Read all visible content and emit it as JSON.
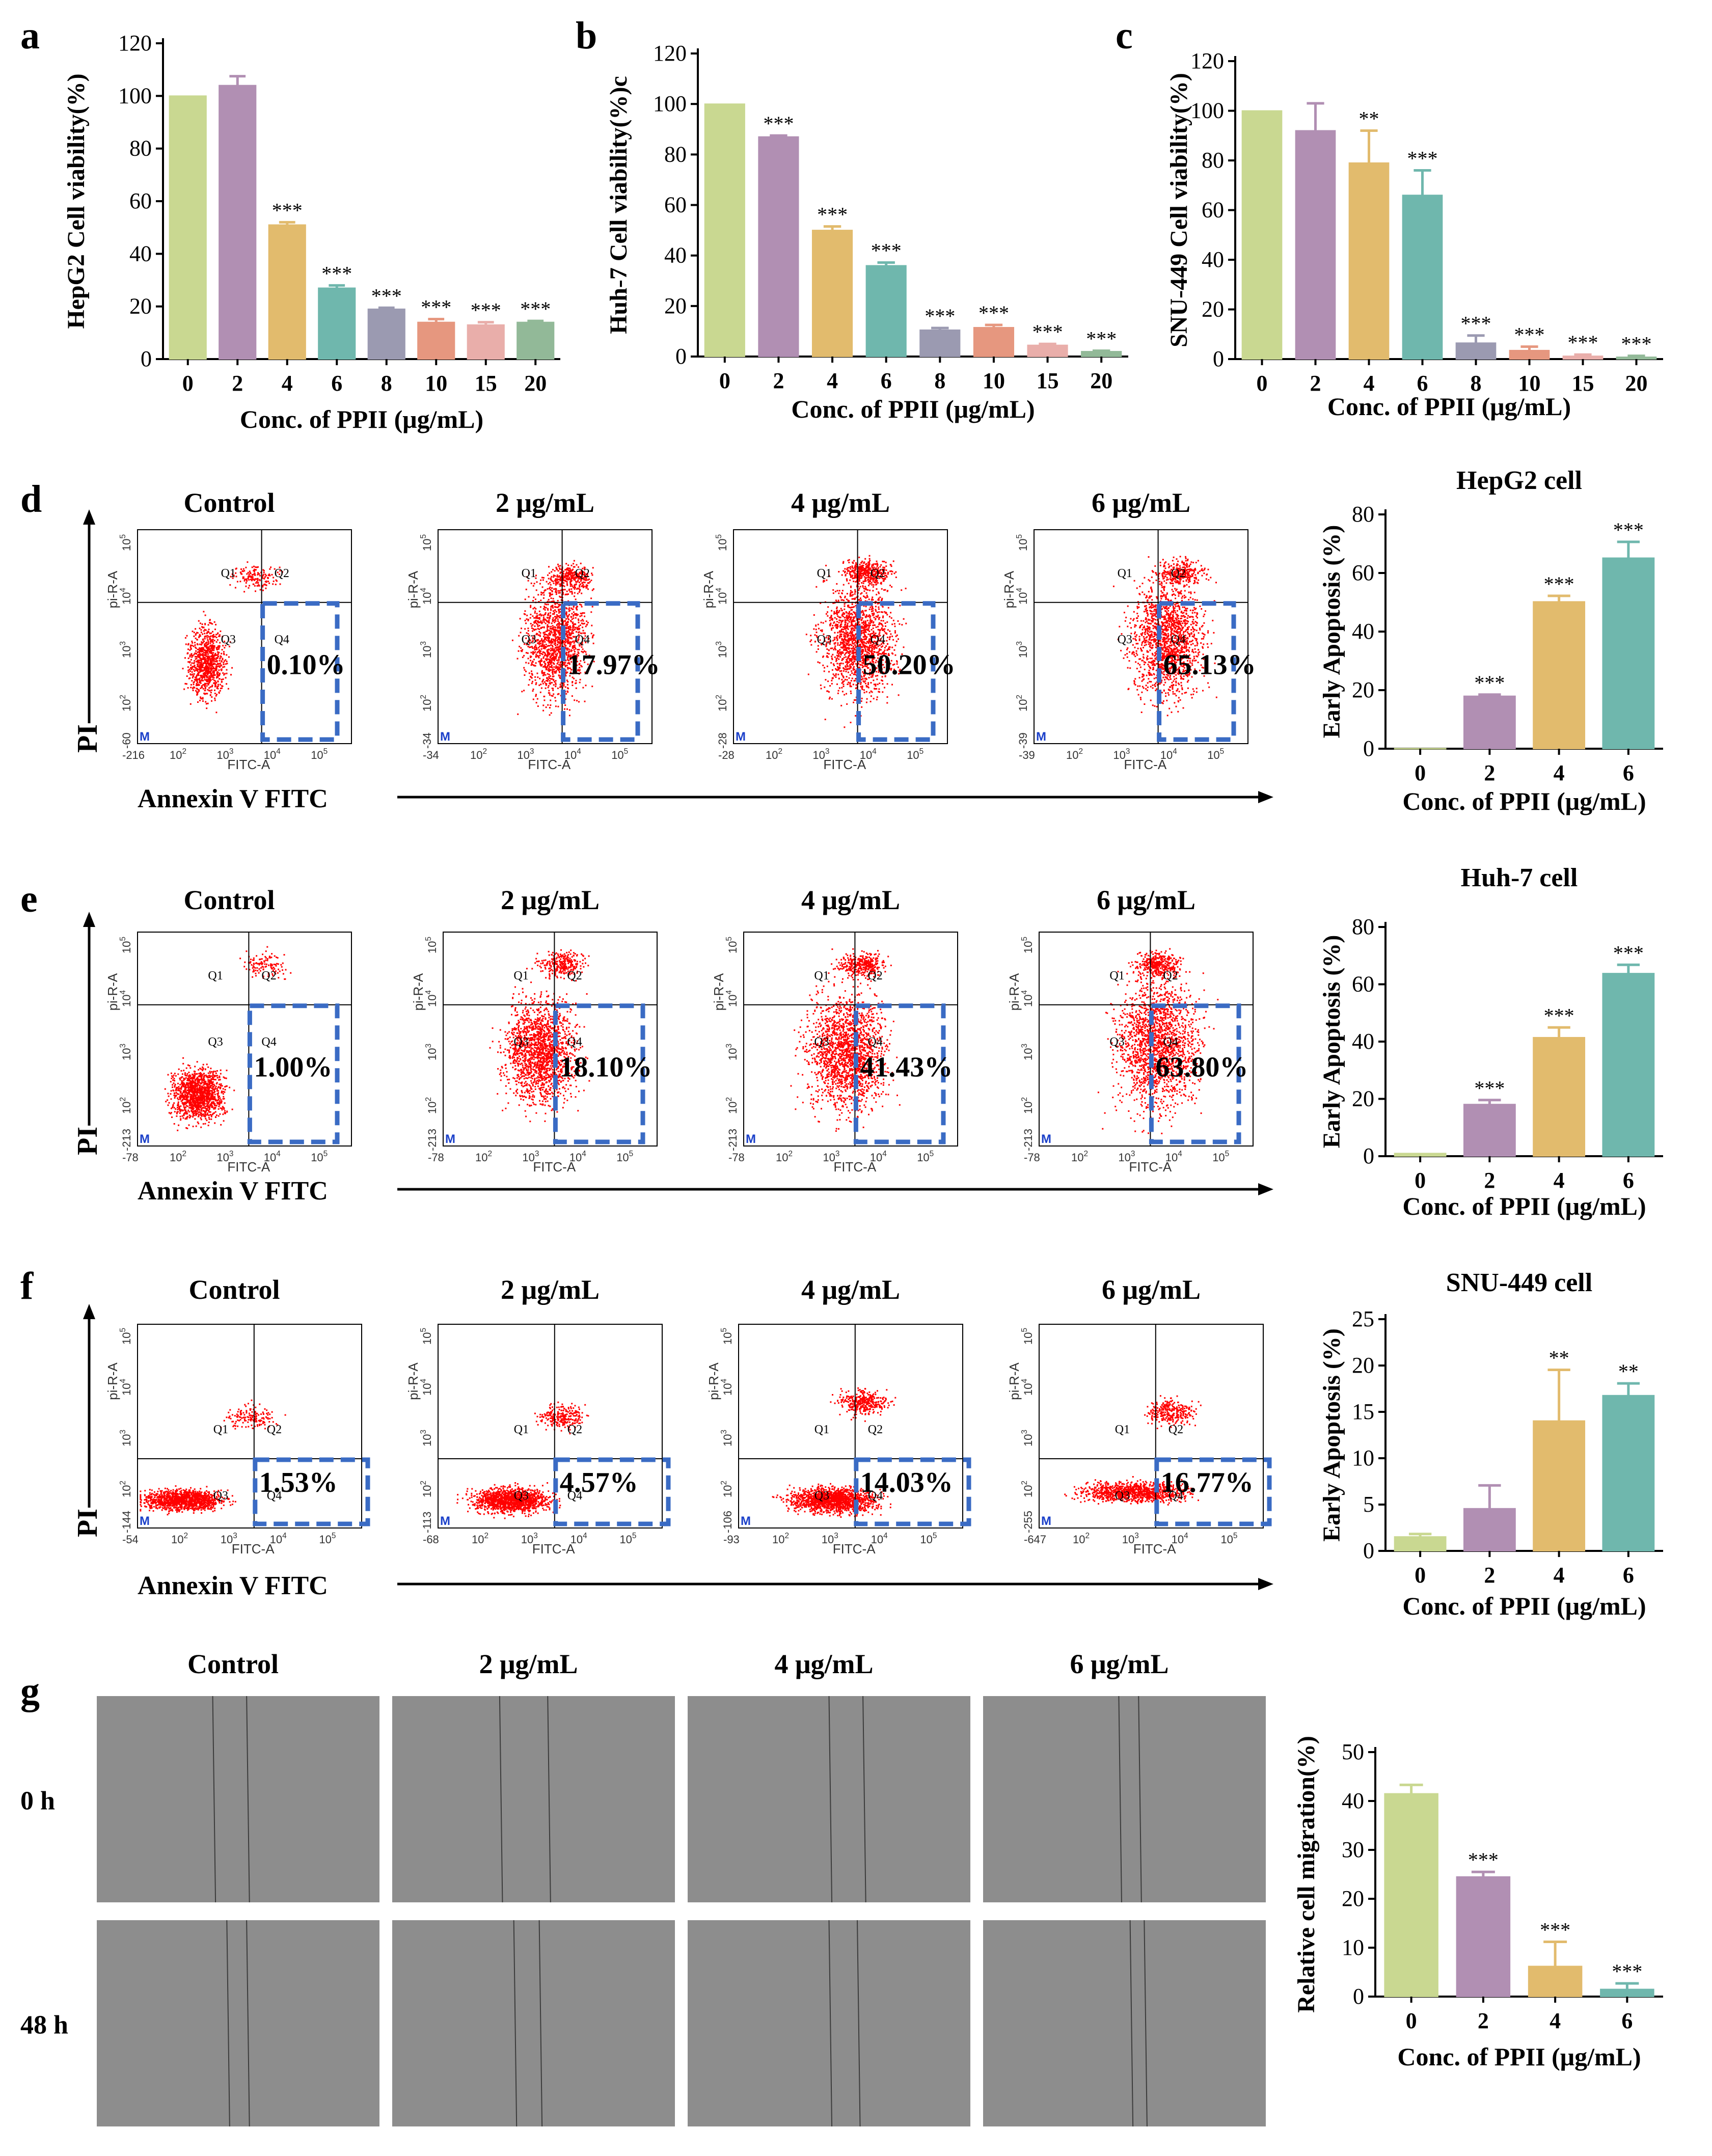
{
  "colors": {
    "bar_palette": [
      "#c9d891",
      "#b18fb3",
      "#e2bb6d",
      "#6fb7ad",
      "#9b9ab1",
      "#e6977f",
      "#e9aeaa",
      "#92b998"
    ],
    "dot": "#ff0000",
    "gate": "#3a6bc4",
    "scratch_bg": "#8d8d8d"
  },
  "panel_letters": {
    "a": "a",
    "b": "b",
    "c": "c",
    "d": "d",
    "e": "e",
    "f": "f",
    "g": "g"
  },
  "chart_data": [
    {
      "id": "a",
      "type": "bar",
      "title": "",
      "categories": [
        "0",
        "2",
        "4",
        "6",
        "8",
        "10",
        "15",
        "20"
      ],
      "values": [
        100,
        104,
        51,
        27,
        19,
        14,
        13,
        14
      ],
      "errors": [
        0,
        3.5,
        1,
        1,
        0.5,
        1.2,
        1,
        0.5
      ],
      "significance": [
        "",
        "",
        "***",
        "***",
        "***",
        "***",
        "***",
        "***"
      ],
      "xlabel": "Conc. of PPII (μg/mL)",
      "ylabel": "HepG2 Cell viability(%)",
      "ylim": [
        0,
        120
      ],
      "yticks": [
        0,
        20,
        40,
        60,
        80,
        100,
        120
      ]
    },
    {
      "id": "b",
      "type": "bar",
      "title": "",
      "categories": [
        "0",
        "2",
        "4",
        "6",
        "8",
        "10",
        "15",
        "20"
      ],
      "values": [
        100,
        87,
        50,
        36,
        10.5,
        11.5,
        4.5,
        2
      ],
      "errors": [
        0,
        0.5,
        1.5,
        1.2,
        0.8,
        1,
        0.5,
        0.3
      ],
      "significance": [
        "",
        "***",
        "***",
        "***",
        "***",
        "***",
        "***",
        "***"
      ],
      "xlabel": "Conc. of PPII (μg/mL)",
      "ylabel": "Huh-7 Cell viability(%)c",
      "ylim": [
        0,
        120
      ],
      "yticks": [
        0,
        20,
        40,
        60,
        80,
        100,
        120
      ]
    },
    {
      "id": "c",
      "type": "bar",
      "title": "",
      "categories": [
        "0",
        "2",
        "4",
        "6",
        "8",
        "10",
        "15",
        "20"
      ],
      "values": [
        100,
        92,
        79,
        66,
        6.5,
        3.5,
        1.2,
        0.8
      ],
      "errors": [
        0,
        11,
        13,
        10,
        3,
        1.5,
        0.6,
        0.5
      ],
      "significance": [
        "",
        "",
        "**",
        "***",
        "***",
        "***",
        "***",
        "***"
      ],
      "xlabel": "Conc. of PPII (μg/mL)",
      "ylabel": "SNU-449 Cell viability(%)",
      "ylim": [
        0,
        120
      ],
      "yticks": [
        0,
        20,
        40,
        60,
        80,
        100,
        120
      ]
    },
    {
      "id": "d",
      "type": "bar",
      "title": "HepG2 cell",
      "categories": [
        "0",
        "2",
        "4",
        "6"
      ],
      "values": [
        0.1,
        17.97,
        50.2,
        65.13
      ],
      "errors": [
        0,
        0.5,
        2,
        5.5
      ],
      "significance": [
        "",
        "***",
        "***",
        "***"
      ],
      "xlabel": "Conc. of PPII (μg/mL)",
      "ylabel": "Early Apoptosis (%)",
      "ylim": [
        0,
        80
      ],
      "yticks": [
        0,
        20,
        40,
        60,
        80
      ]
    },
    {
      "id": "e",
      "type": "bar",
      "title": "Huh-7 cell",
      "categories": [
        "0",
        "2",
        "4",
        "6"
      ],
      "values": [
        1.0,
        18.1,
        41.43,
        63.8
      ],
      "errors": [
        0,
        1.5,
        3.5,
        3
      ],
      "significance": [
        "",
        "***",
        "***",
        "***"
      ],
      "xlabel": "Conc. of PPII (μg/mL)",
      "ylabel": "Early Apoptosis (%)",
      "ylim": [
        0,
        80
      ],
      "yticks": [
        0,
        20,
        40,
        60,
        80
      ]
    },
    {
      "id": "f",
      "type": "bar",
      "title": "SNU-449 cell",
      "categories": [
        "0",
        "2",
        "4",
        "6"
      ],
      "values": [
        1.53,
        4.57,
        14.03,
        16.77
      ],
      "errors": [
        0.3,
        2.5,
        5.5,
        1.3
      ],
      "significance": [
        "",
        "",
        "**",
        "**"
      ],
      "xlabel": "Conc. of PPII (μg/mL)",
      "ylabel": "Early Apoptosis (%)",
      "ylim": [
        0,
        25
      ],
      "yticks": [
        0,
        5,
        10,
        15,
        20,
        25
      ]
    },
    {
      "id": "g",
      "type": "bar",
      "title": "",
      "categories": [
        "0",
        "2",
        "4",
        "6"
      ],
      "values": [
        41.5,
        24.5,
        6.2,
        1.5
      ],
      "errors": [
        1.8,
        1,
        5,
        1.2
      ],
      "significance": [
        "",
        "***",
        "***",
        "***"
      ],
      "xlabel": "Conc. of PPII (μg/mL)",
      "ylabel": "Relative cell migration(%)",
      "ylim": [
        0,
        50
      ],
      "yticks": [
        0,
        10,
        20,
        30,
        40,
        50
      ]
    }
  ],
  "flow": {
    "conditions": [
      "Control",
      "2 μg/mL",
      "4 μg/mL",
      "6 μg/mL"
    ],
    "y_axis_title": "PI",
    "x_axis_title": "Annexin V FITC",
    "x_channel": "FITC-A",
    "y_channel": "pi-R-A",
    "quadrants": [
      "Q1",
      "Q2",
      "Q3",
      "Q4"
    ],
    "marker": "M",
    "rows": [
      {
        "row": "d",
        "percents": [
          "0.10%",
          "17.97%",
          "50.20%",
          "65.13%"
        ],
        "xmins": [
          "-216",
          "-34",
          "-28",
          "-39"
        ],
        "ymins": [
          "-60",
          "-34",
          "-28",
          "-39"
        ]
      },
      {
        "row": "e",
        "percents": [
          "1.00%",
          "18.10%",
          "41.43%",
          "63.80%"
        ],
        "xmins": [
          "-78",
          "-78",
          "-78",
          "-78"
        ],
        "ymins": [
          "-213",
          "-213",
          "-213",
          "-213"
        ]
      },
      {
        "row": "f",
        "percents": [
          "1.53%",
          "4.57%",
          "14.03%",
          "16.77%"
        ],
        "xmins": [
          "-54",
          "-68",
          "-93",
          "-647"
        ],
        "ymins": [
          "-144",
          "-113",
          "-106",
          "-255"
        ]
      }
    ],
    "tick_labels": {
      "x": [
        "10^2",
        "10^3",
        "10^4",
        "10^5"
      ],
      "y": [
        "10^2",
        "10^3",
        "10^4",
        "10^5"
      ]
    }
  },
  "migration": {
    "conditions": [
      "Control",
      "2 μg/mL",
      "4 μg/mL",
      "6 μg/mL"
    ],
    "times": [
      "0 h",
      "48 h"
    ]
  }
}
